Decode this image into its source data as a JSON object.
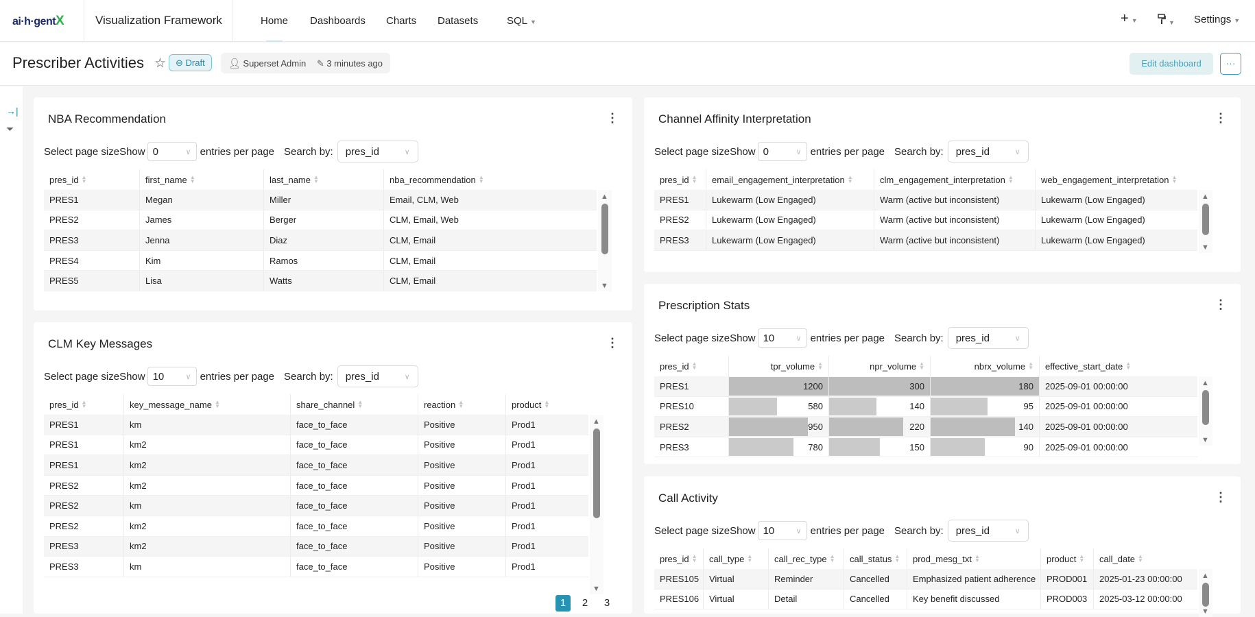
{
  "nav": {
    "logo_text": "ai·h·gentX",
    "logo_main": "ai·h·gent",
    "logo_x": "X",
    "app_title": "Visualization Framework",
    "items": [
      {
        "label": "Home",
        "active": true
      },
      {
        "label": "Dashboards"
      },
      {
        "label": "Charts"
      },
      {
        "label": "Datasets"
      },
      {
        "label": "SQL",
        "dropdown": true
      }
    ],
    "plus_icon": "+",
    "theme_icon": "paint-roller",
    "settings": "Settings"
  },
  "header": {
    "title": "Prescriber Activities",
    "status": "Draft",
    "owner": "Superset Admin",
    "modified": "3 minutes ago",
    "edit_button": "Edit dashboard",
    "more_button": "···"
  },
  "colors": {
    "accent": "#2693b3",
    "bar": "#c8c8c8",
    "row_alt": "#f5f5f5"
  },
  "charts": [
    {
      "title": "NBA Recommendation",
      "controls": {
        "label": "Select page sizeShow",
        "page_size": "0",
        "entries": "entries per page",
        "search_by": "Search by:",
        "search_column": "pres_id"
      },
      "columns": [
        "pres_id",
        "first_name",
        "last_name",
        "nba_recommendation"
      ],
      "rows": [
        [
          "PRES1",
          "Megan",
          "Miller",
          "Email, CLM, Web"
        ],
        [
          "PRES2",
          "James",
          "Berger",
          "CLM, Email, Web"
        ],
        [
          "PRES3",
          "Jenna",
          "Diaz",
          "CLM, Email"
        ],
        [
          "PRES4",
          "Kim",
          "Ramos",
          "CLM, Email"
        ],
        [
          "PRES5",
          "Lisa",
          "Watts",
          "CLM, Email"
        ]
      ]
    },
    {
      "title": "CLM Key Messages",
      "controls": {
        "label": "Select page sizeShow",
        "page_size": "10",
        "entries": "entries per page",
        "search_by": "Search by:",
        "search_column": "pres_id"
      },
      "columns": [
        "pres_id",
        "key_message_name",
        "share_channel",
        "reaction",
        "product"
      ],
      "rows": [
        [
          "PRES1",
          "km",
          "face_to_face",
          "Positive",
          "Prod1"
        ],
        [
          "PRES1",
          "km2",
          "face_to_face",
          "Positive",
          "Prod1"
        ],
        [
          "PRES1",
          "km2",
          "face_to_face",
          "Positive",
          "Prod1"
        ],
        [
          "PRES2",
          "km2",
          "face_to_face",
          "Positive",
          "Prod1"
        ],
        [
          "PRES2",
          "km",
          "face_to_face",
          "Positive",
          "Prod1"
        ],
        [
          "PRES2",
          "km2",
          "face_to_face",
          "Positive",
          "Prod1"
        ],
        [
          "PRES3",
          "km2",
          "face_to_face",
          "Positive",
          "Prod1"
        ],
        [
          "PRES3",
          "km",
          "face_to_face",
          "Positive",
          "Prod1"
        ]
      ],
      "pagination": {
        "pages": [
          "1",
          "2",
          "3"
        ],
        "current": "1"
      }
    },
    {
      "title": "Channel Affinity Interpretation",
      "controls": {
        "label": "Select page sizeShow",
        "page_size": "0",
        "entries": "entries per page",
        "search_by": "Search by:",
        "search_column": "pres_id"
      },
      "columns": [
        "pres_id",
        "email_engagement_interpretation",
        "clm_engagement_interpretation",
        "web_engagement_interpretation"
      ],
      "rows": [
        [
          "PRES1",
          "Lukewarm (Low Engaged)",
          "Warm (active but inconsistent)",
          "Lukewarm (Low Engaged)"
        ],
        [
          "PRES2",
          "Lukewarm (Low Engaged)",
          "Warm (active but inconsistent)",
          "Lukewarm (Low Engaged)"
        ],
        [
          "PRES3",
          "Lukewarm (Low Engaged)",
          "Warm (active but inconsistent)",
          "Lukewarm (Low Engaged)"
        ]
      ]
    },
    {
      "title": "Prescription Stats",
      "controls": {
        "label": "Select page sizeShow",
        "page_size": "10",
        "entries": "entries per page",
        "search_by": "Search by:",
        "search_column": "pres_id"
      },
      "columns": [
        "pres_id",
        "tpr_volume",
        "npr_volume",
        "nbrx_volume",
        "effective_start_date"
      ],
      "numeric_columns": [
        1,
        2,
        3
      ],
      "rows": [
        [
          "PRES1",
          "1200",
          "300",
          "180",
          "2025-09-01 00:00:00"
        ],
        [
          "PRES10",
          "580",
          "140",
          "95",
          "2025-09-01 00:00:00"
        ],
        [
          "PRES2",
          "950",
          "220",
          "140",
          "2025-09-01 00:00:00"
        ],
        [
          "PRES3",
          "780",
          "150",
          "90",
          "2025-09-01 00:00:00"
        ]
      ]
    },
    {
      "title": "Call Activity",
      "controls": {
        "label": "Select page sizeShow",
        "page_size": "10",
        "entries": "entries per page",
        "search_by": "Search by:",
        "search_column": "pres_id"
      },
      "columns": [
        "pres_id",
        "call_type",
        "call_rec_type",
        "call_status",
        "prod_mesg_txt",
        "product",
        "call_date"
      ],
      "rows": [
        [
          "PRES105",
          "Virtual",
          "Reminder",
          "Cancelled",
          "Emphasized patient adherence",
          "PROD001",
          "2025-01-23 00:00:00"
        ],
        [
          "PRES106",
          "Virtual",
          "Detail",
          "Cancelled",
          "Key benefit discussed",
          "PROD003",
          "2025-03-12 00:00:00"
        ]
      ]
    }
  ]
}
